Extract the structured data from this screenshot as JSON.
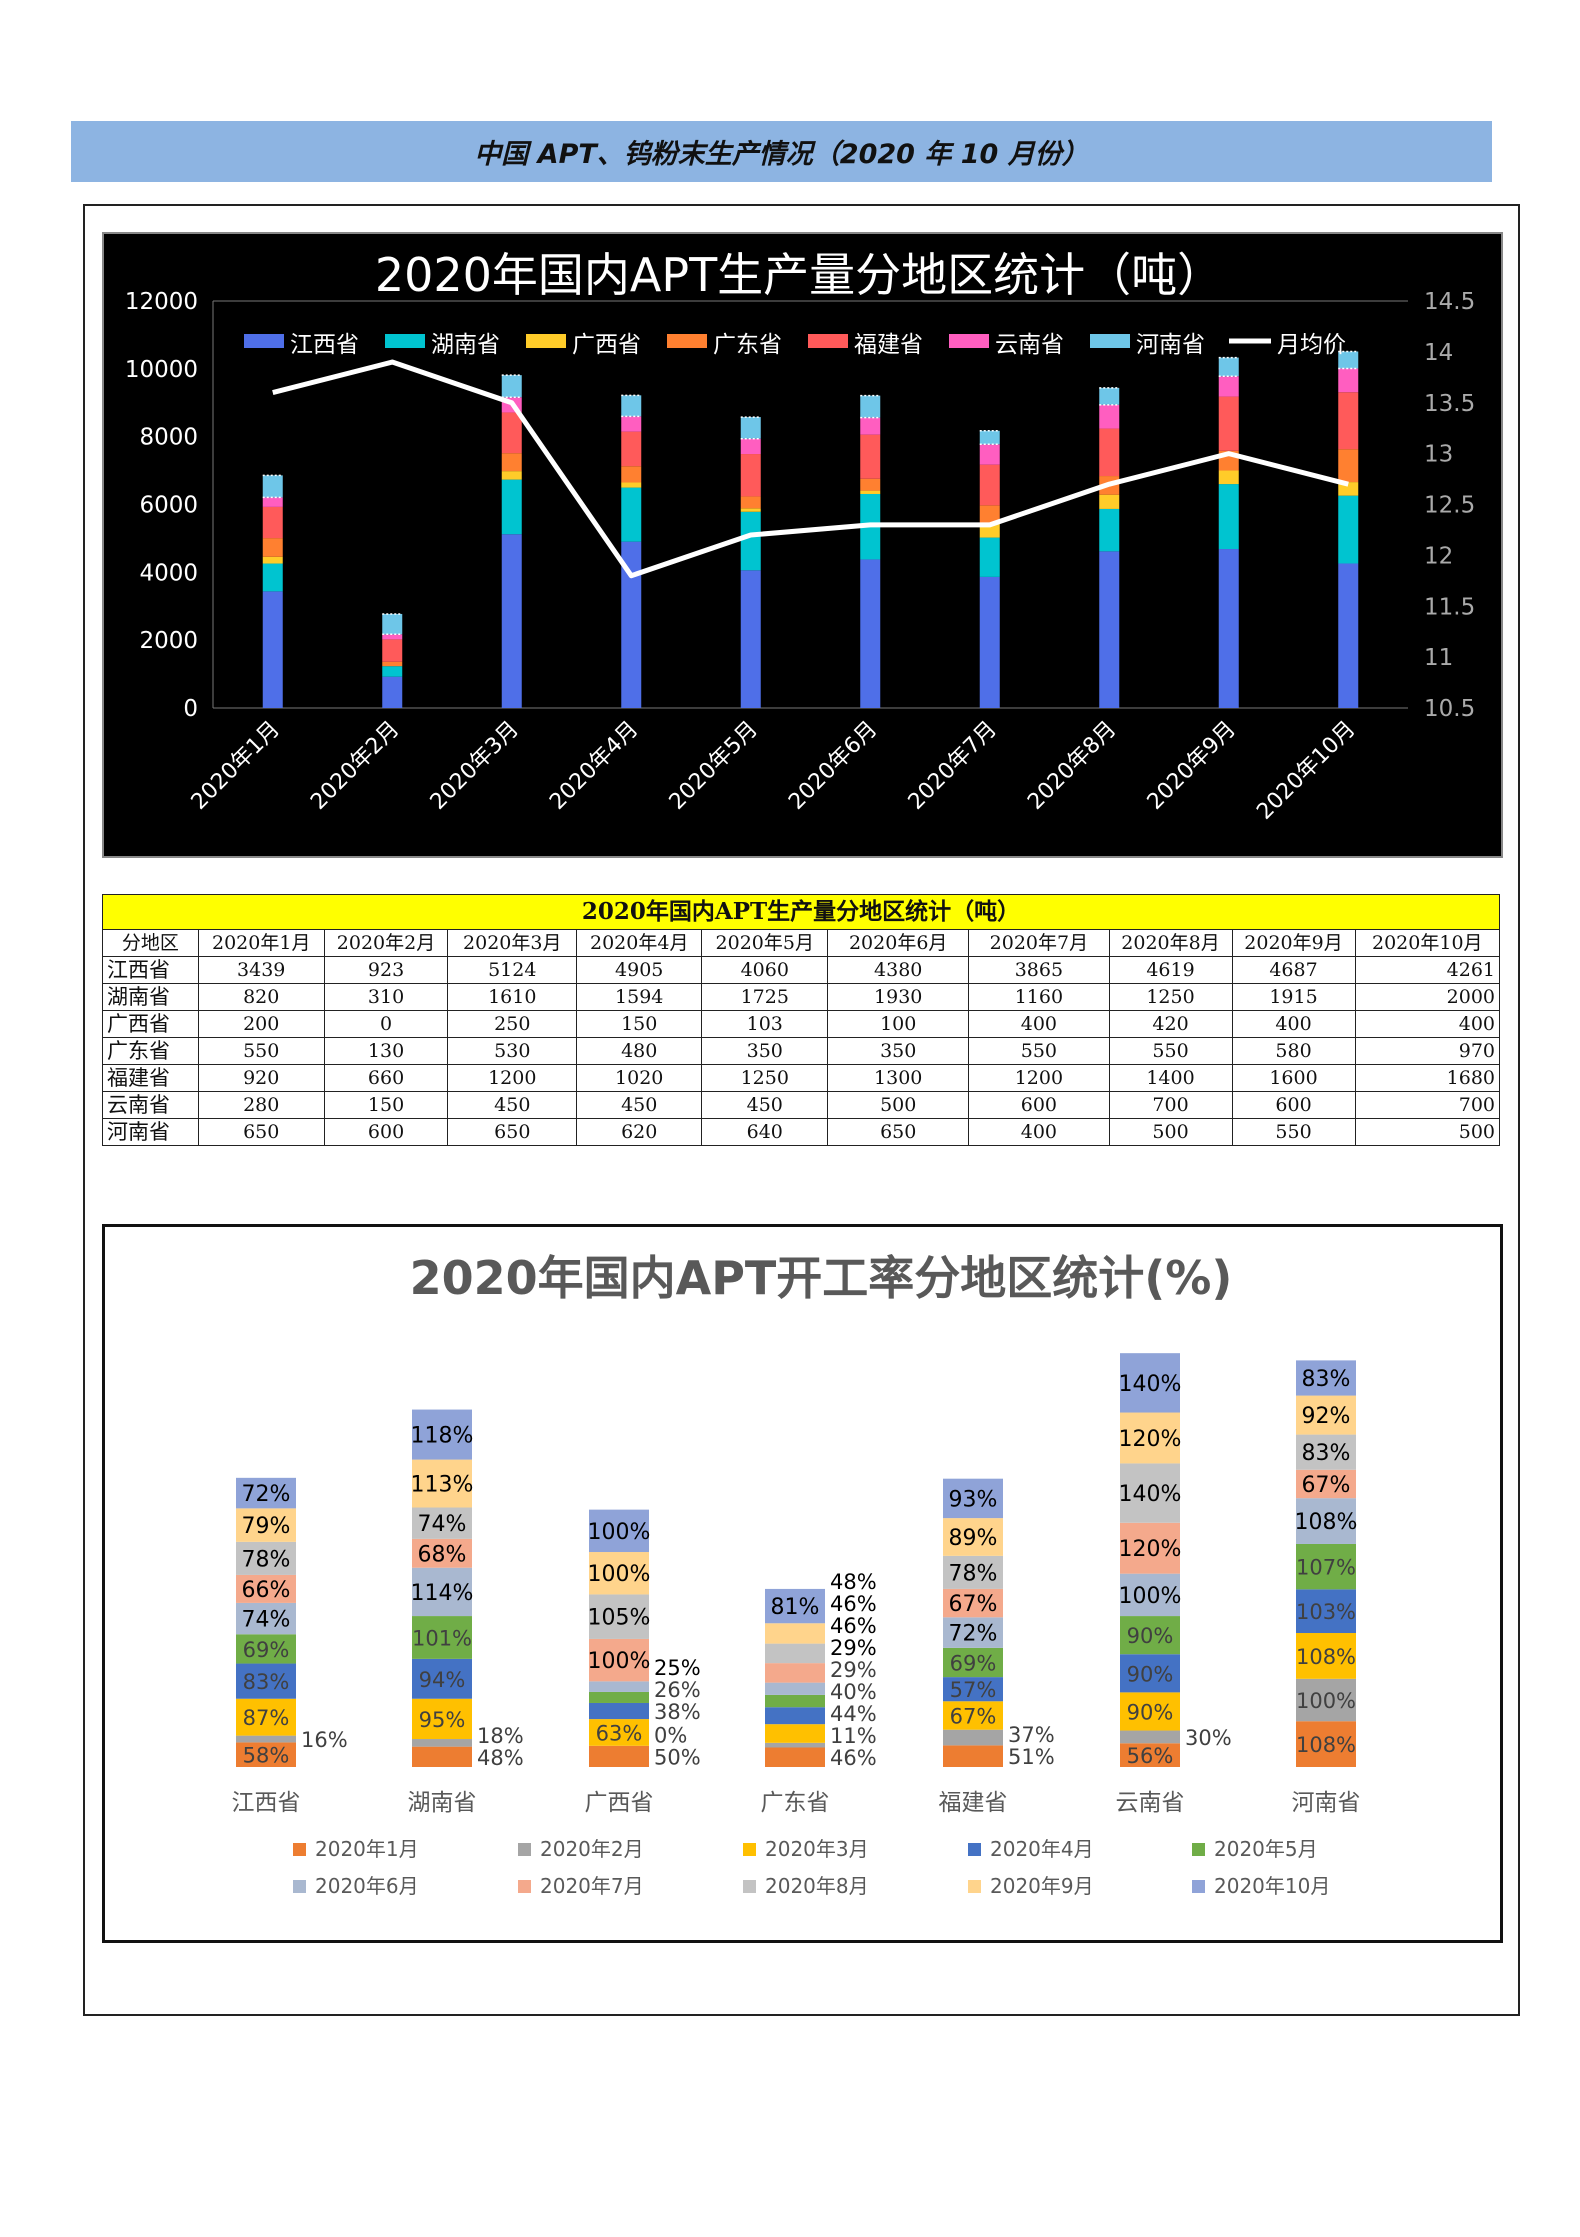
{
  "banner": {
    "title": "中国 APT、钨粉末生产情况（2020 年 10 月份）"
  },
  "months": [
    "2020年1月",
    "2020年2月",
    "2020年3月",
    "2020年4月",
    "2020年5月",
    "2020年6月",
    "2020年7月",
    "2020年8月",
    "2020年9月",
    "2020年10月"
  ],
  "table": {
    "title": "2020年国内APT生产量分地区统计（吨）",
    "corner": "分地区",
    "rows": [
      {
        "region": "江西省",
        "values": [
          3439,
          923,
          5124,
          4905,
          4060,
          4380,
          3865,
          4619,
          4687,
          4261
        ]
      },
      {
        "region": "湖南省",
        "values": [
          820,
          310,
          1610,
          1594,
          1725,
          1930,
          1160,
          1250,
          1915,
          2000
        ]
      },
      {
        "region": "广西省",
        "values": [
          200,
          0,
          250,
          150,
          103,
          100,
          400,
          420,
          400,
          400
        ]
      },
      {
        "region": "广东省",
        "values": [
          550,
          130,
          530,
          480,
          350,
          350,
          550,
          550,
          580,
          970
        ]
      },
      {
        "region": "福建省",
        "values": [
          920,
          660,
          1200,
          1020,
          1250,
          1300,
          1200,
          1400,
          1600,
          1680
        ]
      },
      {
        "region": "云南省",
        "values": [
          280,
          150,
          450,
          450,
          450,
          500,
          600,
          700,
          600,
          700
        ]
      },
      {
        "region": "河南省",
        "values": [
          650,
          600,
          650,
          620,
          640,
          650,
          400,
          500,
          550,
          500
        ]
      }
    ]
  },
  "chart_data": [
    {
      "type": "bar",
      "stacked": true,
      "title": "2020年国内APT生产量分地区统计（吨）",
      "categories": [
        "2020年1月",
        "2020年2月",
        "2020年3月",
        "2020年4月",
        "2020年5月",
        "2020年6月",
        "2020年7月",
        "2020年8月",
        "2020年9月",
        "2020年10月"
      ],
      "ylim": [
        0,
        12000
      ],
      "yticks": [
        "0",
        "2000",
        "4000",
        "6000",
        "8000",
        "10000",
        "12000"
      ],
      "y2lim": [
        10.5,
        14.5
      ],
      "y2ticks": [
        "10.5",
        "11",
        "11.5",
        "12",
        "12.5",
        "13",
        "13.5",
        "14",
        "14.5"
      ],
      "legend_position": "top",
      "series": [
        {
          "name": "江西省",
          "color": "#4f6fe8",
          "values": [
            3439,
            923,
            5124,
            4905,
            4060,
            4380,
            3865,
            4619,
            4687,
            4261
          ]
        },
        {
          "name": "湖南省",
          "color": "#00c4d0",
          "values": [
            820,
            310,
            1610,
            1594,
            1725,
            1930,
            1160,
            1250,
            1915,
            2000
          ]
        },
        {
          "name": "广西省",
          "color": "#ffcc29",
          "values": [
            200,
            0,
            250,
            150,
            103,
            100,
            400,
            420,
            400,
            400
          ]
        },
        {
          "name": "广东省",
          "color": "#ff8030",
          "values": [
            550,
            130,
            530,
            480,
            350,
            350,
            550,
            550,
            580,
            970
          ]
        },
        {
          "name": "福建省",
          "color": "#ff5a5a",
          "values": [
            920,
            660,
            1200,
            1020,
            1250,
            1300,
            1200,
            1400,
            1600,
            1680
          ]
        },
        {
          "name": "云南省",
          "color": "#ff5ec0",
          "values": [
            280,
            150,
            450,
            450,
            450,
            500,
            600,
            700,
            600,
            700
          ]
        },
        {
          "name": "河南省",
          "color": "#6ec6e8",
          "values": [
            650,
            600,
            650,
            620,
            640,
            650,
            400,
            500,
            550,
            500
          ]
        }
      ],
      "line": {
        "name": "月均价",
        "color": "#ffffff",
        "axis": "right",
        "values": [
          13.6,
          13.9,
          13.5,
          11.8,
          12.2,
          12.3,
          12.3,
          12.7,
          13.0,
          12.7
        ]
      }
    },
    {
      "type": "bar",
      "stacked": true,
      "title": "2020年国内APT开工率分地区统计(%)",
      "categories": [
        "江西省",
        "湖南省",
        "广西省",
        "广东省",
        "福建省",
        "云南省",
        "河南省"
      ],
      "legend_position": "bottom",
      "series": [
        {
          "name": "2020年1月",
          "color": "#ed7d31",
          "values": [
            58,
            48,
            50,
            46,
            51,
            56,
            108
          ]
        },
        {
          "name": "2020年2月",
          "color": "#a5a5a5",
          "values": [
            16,
            18,
            0,
            11,
            37,
            30,
            100
          ]
        },
        {
          "name": "2020年3月",
          "color": "#ffc000",
          "values": [
            87,
            95,
            63,
            44,
            67,
            90,
            108
          ]
        },
        {
          "name": "2020年4月",
          "color": "#4472c4",
          "values": [
            83,
            94,
            38,
            40,
            57,
            90,
            103
          ]
        },
        {
          "name": "2020年5月",
          "color": "#70ad47",
          "values": [
            69,
            101,
            26,
            29,
            69,
            90,
            107
          ]
        },
        {
          "name": "2020年6月",
          "color": "#a9b8d0",
          "values": [
            74,
            114,
            25,
            29,
            72,
            100,
            108
          ]
        },
        {
          "name": "2020年7月",
          "color": "#f4a98c",
          "values": [
            66,
            68,
            100,
            46,
            67,
            120,
            67
          ]
        },
        {
          "name": "2020年8月",
          "color": "#c3c3c3",
          "values": [
            78,
            74,
            105,
            46,
            78,
            140,
            83
          ]
        },
        {
          "name": "2020年9月",
          "color": "#ffd48c",
          "values": [
            79,
            113,
            100,
            48,
            89,
            120,
            92
          ]
        },
        {
          "name": "2020年10月",
          "color": "#8fa3d8",
          "values": [
            72,
            118,
            100,
            81,
            93,
            140,
            83
          ]
        }
      ]
    }
  ]
}
